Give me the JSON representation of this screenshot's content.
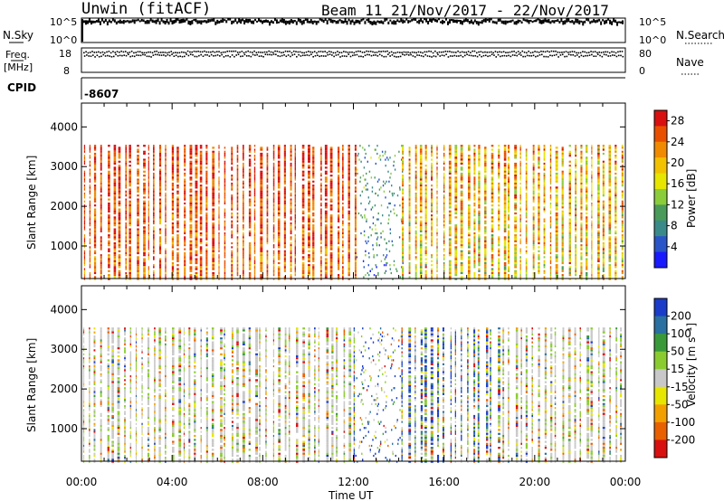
{
  "header": {
    "station": "Unwin (fitACF)",
    "beam_date": "Beam 11  21/Nov/2017 - 22/Nov/2017"
  },
  "chart_data": [
    {
      "type": "line",
      "name": "noise",
      "left_label": "N.Sky",
      "right_label": "N.Search",
      "left_ticks": [
        "10^5",
        "10^0"
      ],
      "right_ticks": [
        "10^5",
        "10^0"
      ],
      "yscale": "log",
      "ylim": [
        1,
        100000
      ],
      "x_hours": [
        0,
        24
      ],
      "level_left": 100000,
      "level_right": 100000
    },
    {
      "type": "line",
      "name": "frequency",
      "left_label_1": "Freq.",
      "left_label_2": "[MHz]",
      "right_label": "Nave",
      "left_ticks": [
        "18",
        "8"
      ],
      "right_ticks": [
        "80",
        "0"
      ],
      "ylim": [
        8,
        18
      ],
      "freq_mhz": 16.5,
      "nave_ylim": [
        0,
        80
      ],
      "nave": 60
    },
    {
      "type": "table",
      "name": "cpid",
      "label": "CPID",
      "value": "-8607"
    },
    {
      "type": "heatmap",
      "name": "power",
      "ylabel": "Slant Range [km]",
      "yticks": [
        "1000",
        "2000",
        "3000",
        "4000"
      ],
      "ylim": [
        180,
        4600
      ],
      "data_ylim": [
        180,
        3550
      ],
      "colorbar_label": "Power [dB]",
      "colorbar_ticks": [
        "4",
        "8",
        "12",
        "16",
        "20",
        "24",
        "28"
      ],
      "colorbar_range": [
        0,
        30
      ],
      "colors": [
        "#1a1aff",
        "#2a55c8",
        "#3a8a8a",
        "#4a9a5a",
        "#8acc3a",
        "#e6e600",
        "#f2c200",
        "#f08a00",
        "#e85000",
        "#d81010"
      ],
      "quiet_hours": [
        12.2,
        14.0
      ]
    },
    {
      "type": "heatmap",
      "name": "velocity",
      "ylabel": "Slant Range [km]",
      "yticks": [
        "1000",
        "2000",
        "3000",
        "4000"
      ],
      "ylim": [
        180,
        4600
      ],
      "data_ylim": [
        180,
        3550
      ],
      "colorbar_label": "Velocity [m s⁻¹]",
      "colorbar_ticks": [
        "200",
        "100",
        "50",
        "15",
        "-15",
        "-50",
        "-100",
        "-200"
      ],
      "colors": [
        "#1a3cc8",
        "#2a70a0",
        "#3a9a3a",
        "#8acc30",
        "#c8c8c8",
        "#e6e600",
        "#f2a000",
        "#e86000",
        "#d81010"
      ],
      "x_ticks": [
        "00:00",
        "04:00",
        "08:00",
        "12:00",
        "16:00",
        "20:00",
        "00:00"
      ],
      "xlabel": "Time UT"
    }
  ]
}
